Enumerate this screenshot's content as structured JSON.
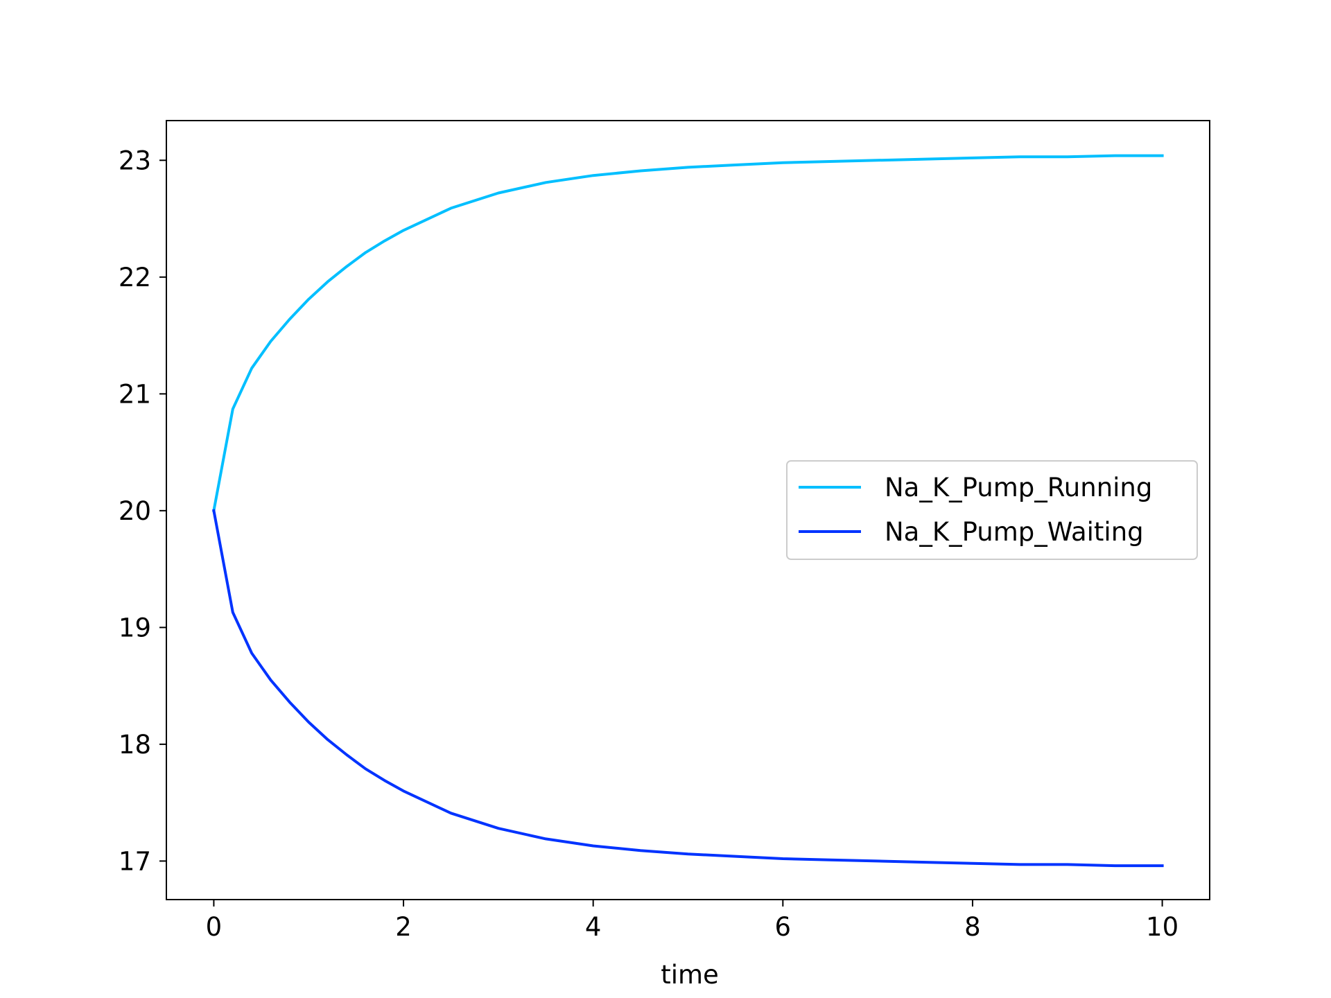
{
  "chart_data": {
    "type": "line",
    "title": "",
    "xlabel": "time",
    "ylabel": "",
    "xlim": [
      -0.5,
      10.5
    ],
    "ylim": [
      16.67,
      23.34
    ],
    "xticks": [
      0,
      2,
      4,
      6,
      8,
      10
    ],
    "xtick_labels": [
      "0",
      "2",
      "4",
      "6",
      "8",
      "10"
    ],
    "yticks": [
      17,
      18,
      19,
      20,
      21,
      22,
      23
    ],
    "ytick_labels": [
      "17",
      "18",
      "19",
      "20",
      "21",
      "22",
      "23"
    ],
    "grid": false,
    "legend_position": "center-right",
    "x": [
      0,
      0.2,
      0.4,
      0.6,
      0.8,
      1.0,
      1.2,
      1.4,
      1.6,
      1.8,
      2.0,
      2.5,
      3.0,
      3.5,
      4.0,
      4.5,
      5.0,
      5.5,
      6.0,
      6.5,
      7.0,
      7.5,
      8.0,
      8.5,
      9.0,
      9.5,
      10.0
    ],
    "series": [
      {
        "name": "Na_K_Pump_Running",
        "color": "#00bfff",
        "values": [
          20.0,
          20.87,
          21.22,
          21.45,
          21.64,
          21.81,
          21.96,
          22.09,
          22.21,
          22.31,
          22.4,
          22.59,
          22.72,
          22.81,
          22.87,
          22.91,
          22.94,
          22.96,
          22.98,
          22.99,
          23.0,
          23.01,
          23.02,
          23.03,
          23.03,
          23.04,
          23.04
        ]
      },
      {
        "name": "Na_K_Pump_Waiting",
        "color": "#0033ff",
        "values": [
          20.0,
          19.13,
          18.78,
          18.55,
          18.36,
          18.19,
          18.04,
          17.91,
          17.79,
          17.69,
          17.6,
          17.41,
          17.28,
          17.19,
          17.13,
          17.09,
          17.06,
          17.04,
          17.02,
          17.01,
          17.0,
          16.99,
          16.98,
          16.97,
          16.97,
          16.96,
          16.96
        ]
      }
    ]
  }
}
